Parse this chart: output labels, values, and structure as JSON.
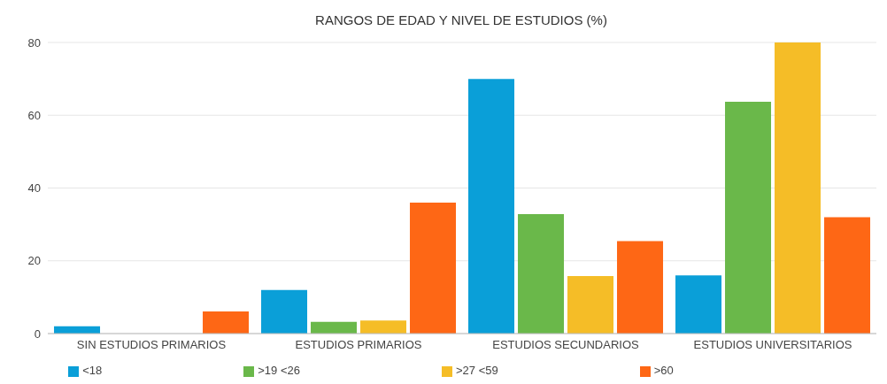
{
  "chart_data": {
    "type": "bar",
    "title": "RANGOS DE EDAD Y NIVEL DE ESTUDIOS (%)",
    "categories": [
      "SIN ESTUDIOS PRIMARIOS",
      "ESTUDIOS PRIMARIOS",
      "ESTUDIOS SECUNDARIOS",
      "ESTUDIOS UNIVERSITARIOS"
    ],
    "series": [
      {
        "name": "<18",
        "color": "#0a9fd8",
        "values": [
          2,
          12,
          70,
          16
        ]
      },
      {
        "name": ">19 <26",
        "color": "#6ab84a",
        "values": [
          0,
          3.2,
          32.8,
          63.7
        ]
      },
      {
        "name": ">27 <59",
        "color": "#f5bd27",
        "values": [
          0,
          3.6,
          15.8,
          80
        ]
      },
      {
        "name": ">60",
        "color": "#fe6715",
        "values": [
          6.1,
          36,
          25.4,
          32
        ]
      }
    ],
    "ylim": [
      0,
      80
    ],
    "yticks": [
      0,
      20,
      40,
      60,
      80
    ],
    "grid": "y",
    "legend": "bottom"
  }
}
